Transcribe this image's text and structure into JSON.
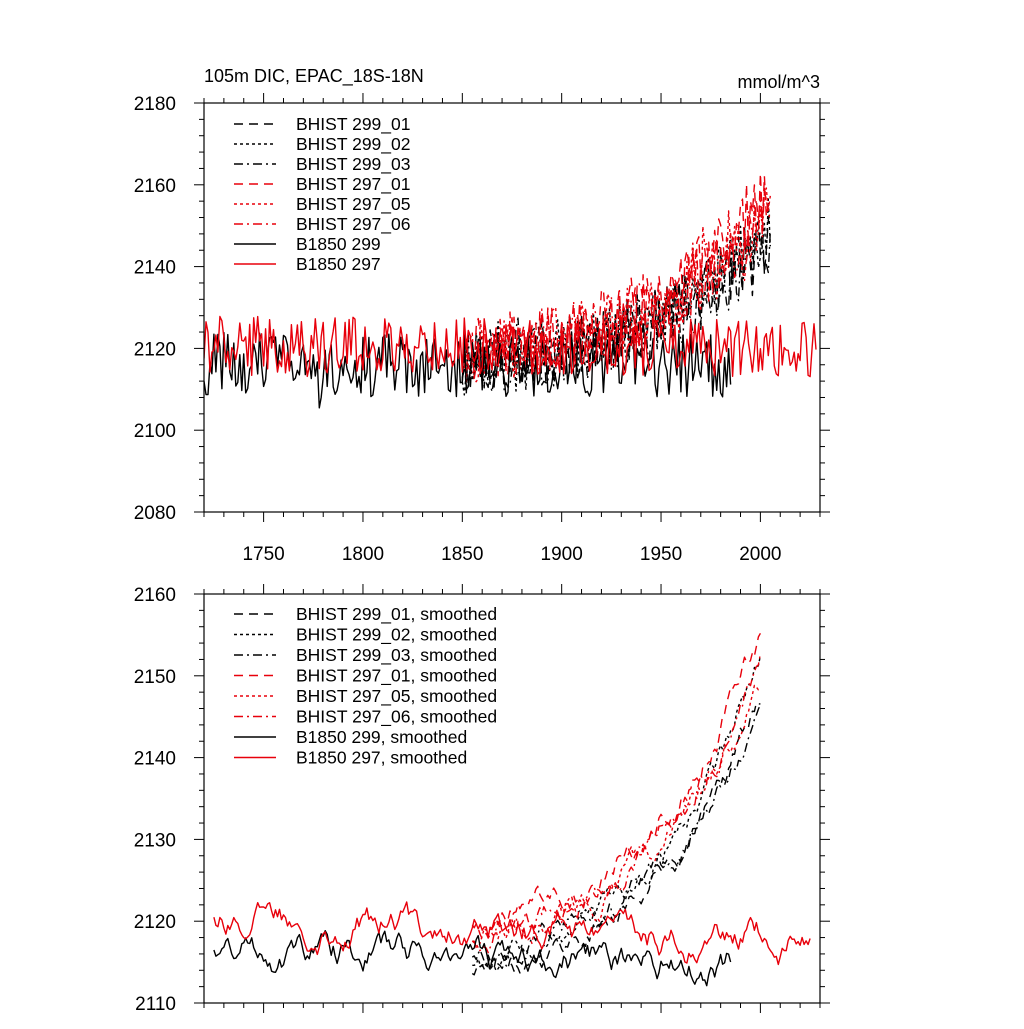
{
  "chart_data": [
    {
      "type": "line",
      "title": "105m DIC, EPAC_18S-18N",
      "units": "mmol/m^3",
      "xlim": [
        1720,
        2030
      ],
      "ylim": [
        2080,
        2180
      ],
      "x_major_ticks": [
        1750,
        1800,
        1850,
        1900,
        1950,
        2000
      ],
      "x_tick_labels": [
        "1750",
        "1800",
        "1850",
        "1900",
        "1950",
        "2000"
      ],
      "y_major_ticks": [
        2080,
        2100,
        2120,
        2140,
        2160,
        2180
      ],
      "y_tick_labels": [
        "2080",
        "2100",
        "2120",
        "2140",
        "2160",
        "2180"
      ],
      "legend_position": "top-left",
      "series": [
        {
          "name": "BHIST 299_01",
          "color": "#000000",
          "dash": "dash",
          "kind": "hist",
          "x_start": 1850,
          "x_end": 2005,
          "start": 2117,
          "end": 2148,
          "amp": 8,
          "seed": 11
        },
        {
          "name": "BHIST 299_02",
          "color": "#000000",
          "dash": "dot",
          "kind": "hist",
          "x_start": 1850,
          "x_end": 2005,
          "start": 2116,
          "end": 2150,
          "amp": 8,
          "seed": 12
        },
        {
          "name": "BHIST 299_03",
          "color": "#000000",
          "dash": "dashdot",
          "kind": "hist",
          "x_start": 1850,
          "x_end": 2005,
          "start": 2116,
          "end": 2147,
          "amp": 8,
          "seed": 13
        },
        {
          "name": "BHIST 297_01",
          "color": "#e8000b",
          "dash": "dash",
          "kind": "hist",
          "x_start": 1850,
          "x_end": 2005,
          "start": 2120,
          "end": 2160,
          "amp": 8,
          "seed": 21
        },
        {
          "name": "BHIST 297_05",
          "color": "#e8000b",
          "dash": "dot",
          "kind": "hist",
          "x_start": 1850,
          "x_end": 2005,
          "start": 2119,
          "end": 2153,
          "amp": 8,
          "seed": 22
        },
        {
          "name": "BHIST 297_06",
          "color": "#e8000b",
          "dash": "dashdot",
          "kind": "hist",
          "x_start": 1850,
          "x_end": 2005,
          "start": 2119,
          "end": 2155,
          "amp": 8,
          "seed": 23
        },
        {
          "name": "B1850 299",
          "color": "#000000",
          "dash": "solid",
          "kind": "ctrl",
          "x_start": 1720,
          "x_end": 1985,
          "start": 2116,
          "end": 2116,
          "amp": 8,
          "seed": 31
        },
        {
          "name": "B1850 297",
          "color": "#e8000b",
          "dash": "solid",
          "kind": "ctrl",
          "x_start": 1720,
          "x_end": 2028,
          "start": 2121,
          "end": 2120,
          "amp": 7,
          "seed": 41
        }
      ]
    },
    {
      "type": "line",
      "title": "",
      "xlim": [
        1720,
        2030
      ],
      "ylim": [
        2110,
        2160
      ],
      "x_major_ticks": [
        1750,
        1800,
        1850,
        1900,
        1950,
        2000
      ],
      "y_major_ticks": [
        2110,
        2120,
        2130,
        2140,
        2150,
        2160
      ],
      "y_tick_labels": [
        "2110",
        "2120",
        "2130",
        "2140",
        "2150",
        "2160"
      ],
      "legend_position": "top-left",
      "series": [
        {
          "name": "BHIST 299_01, smoothed",
          "color": "#000000",
          "dash": "dash",
          "kind": "hist",
          "x_start": 1855,
          "x_end": 2000,
          "start": 2114,
          "end": 2148,
          "amp": 1.6,
          "seed": 111
        },
        {
          "name": "BHIST 299_02, smoothed",
          "color": "#000000",
          "dash": "dot",
          "kind": "hist",
          "x_start": 1855,
          "x_end": 2000,
          "start": 2115,
          "end": 2152,
          "amp": 1.6,
          "seed": 112
        },
        {
          "name": "BHIST 299_03, smoothed",
          "color": "#000000",
          "dash": "dashdot",
          "kind": "hist",
          "x_start": 1855,
          "x_end": 2000,
          "start": 2116,
          "end": 2146,
          "amp": 1.6,
          "seed": 113
        },
        {
          "name": "BHIST 297_01, smoothed",
          "color": "#e8000b",
          "dash": "dash",
          "kind": "hist",
          "x_start": 1855,
          "x_end": 2000,
          "start": 2120,
          "end": 2155,
          "amp": 1.8,
          "seed": 121
        },
        {
          "name": "BHIST 297_05, smoothed",
          "color": "#e8000b",
          "dash": "dot",
          "kind": "hist",
          "x_start": 1855,
          "x_end": 2000,
          "start": 2118,
          "end": 2150,
          "amp": 1.8,
          "seed": 122
        },
        {
          "name": "BHIST 297_06, smoothed",
          "color": "#e8000b",
          "dash": "dashdot",
          "kind": "hist",
          "x_start": 1855,
          "x_end": 2000,
          "start": 2118,
          "end": 2152,
          "amp": 1.8,
          "seed": 123
        },
        {
          "name": "B1850 299, smoothed",
          "color": "#000000",
          "dash": "solid",
          "kind": "ctrl",
          "x_start": 1725,
          "x_end": 1985,
          "start": 2117,
          "end": 2115,
          "amp": 2.2,
          "seed": 131
        },
        {
          "name": "B1850 297, smoothed",
          "color": "#e8000b",
          "dash": "solid",
          "kind": "ctrl",
          "x_start": 1725,
          "x_end": 2025,
          "start": 2121,
          "end": 2117,
          "amp": 2.2,
          "seed": 141
        }
      ]
    }
  ]
}
